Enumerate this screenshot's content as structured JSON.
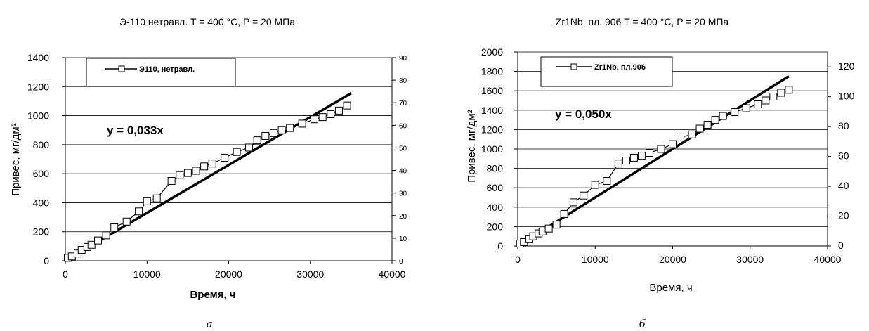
{
  "chart_data": [
    {
      "type": "scatter",
      "title": "Э-110 нетравл. T = 400 °C, P = 20 МПа",
      "xlabel": "Время, ч",
      "ylabel": "Привес, мг/дм²",
      "xlim": [
        0,
        40000
      ],
      "ylim": [
        0,
        1400
      ],
      "xticks": [
        0,
        10000,
        20000,
        30000,
        40000
      ],
      "yticks": [
        0,
        200,
        400,
        600,
        800,
        1000,
        1200,
        1400
      ],
      "y2lim": [
        0,
        90
      ],
      "y2ticks": [
        0,
        10,
        20,
        30,
        40,
        50,
        60,
        70,
        80,
        90
      ],
      "grid": "horizontal",
      "legend": "top-left",
      "equation": "y = 0,033x",
      "caption": "а",
      "fit_slope": 0.033,
      "fit_xmax": 35000,
      "series": [
        {
          "name": "Э110, нетравл.",
          "marker": "square",
          "x": [
            300,
            800,
            1500,
            2000,
            2700,
            3200,
            4000,
            5000,
            6000,
            7500,
            9000,
            10000,
            11200,
            13000,
            14000,
            15000,
            16000,
            17000,
            18000,
            19500,
            21000,
            22500,
            23500,
            24500,
            25500,
            26500,
            27500,
            29000,
            30500,
            31500,
            32500,
            33500,
            34500
          ],
          "y": [
            20,
            30,
            50,
            75,
            95,
            110,
            140,
            175,
            230,
            270,
            340,
            410,
            430,
            550,
            590,
            605,
            620,
            650,
            670,
            710,
            750,
            780,
            830,
            860,
            880,
            900,
            915,
            945,
            975,
            990,
            1010,
            1035,
            1070
          ]
        }
      ]
    },
    {
      "type": "scatter",
      "title": "Zr1Nb, пл. 906 T = 400 °C, P = 20 МПа",
      "xlabel": "Время, ч",
      "ylabel": "Привес, мг/дм²",
      "xlim": [
        0,
        40000
      ],
      "ylim": [
        0,
        2000
      ],
      "xticks": [
        0,
        10000,
        20000,
        30000,
        40000
      ],
      "yticks": [
        0,
        200,
        400,
        600,
        800,
        1000,
        1200,
        1400,
        1600,
        1800,
        2000
      ],
      "y2lim": [
        0,
        130
      ],
      "y2ticks": [
        0,
        20,
        40,
        60,
        80,
        100,
        120
      ],
      "grid": "horizontal",
      "legend": "top-left",
      "equation": "y = 0,050x",
      "caption": "б",
      "fit_slope": 0.05,
      "fit_xmax": 35000,
      "series": [
        {
          "name": "Zr1Nb, пл.906",
          "marker": "square",
          "x": [
            300,
            800,
            1500,
            2000,
            2700,
            3200,
            4000,
            5000,
            6000,
            7200,
            8500,
            10000,
            11500,
            13000,
            14000,
            15000,
            16000,
            17000,
            18500,
            20000,
            21000,
            22500,
            23500,
            24500,
            25500,
            26500,
            28000,
            29500,
            31000,
            32000,
            33000,
            34000,
            35000
          ],
          "y": [
            25,
            40,
            70,
            100,
            130,
            150,
            180,
            220,
            330,
            450,
            520,
            630,
            670,
            850,
            880,
            910,
            930,
            960,
            1000,
            1050,
            1120,
            1150,
            1210,
            1250,
            1300,
            1340,
            1380,
            1420,
            1460,
            1500,
            1540,
            1580,
            1610
          ]
        }
      ]
    }
  ]
}
